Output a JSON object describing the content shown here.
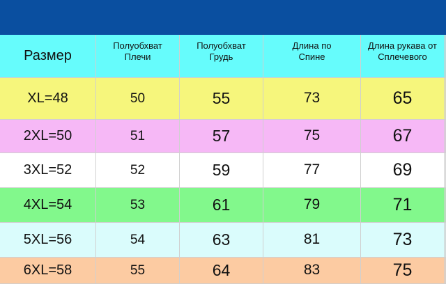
{
  "table": {
    "header": [
      "Размер",
      "Полуобхват\nПлечи",
      "Полуобхват\nГрудь",
      "Длина по\nСпине",
      "Длина рукава от\nСплечевого"
    ],
    "rows": [
      [
        "XL=48",
        50,
        55,
        73,
        65
      ],
      [
        "2XL=50",
        51,
        57,
        75,
        67
      ],
      [
        "3XL=52",
        52,
        59,
        77,
        69
      ],
      [
        "4XL=54",
        53,
        61,
        79,
        71
      ],
      [
        "5XL=56",
        54,
        63,
        81,
        73
      ],
      [
        "6XL=58",
        55,
        64,
        83,
        75
      ]
    ]
  }
}
